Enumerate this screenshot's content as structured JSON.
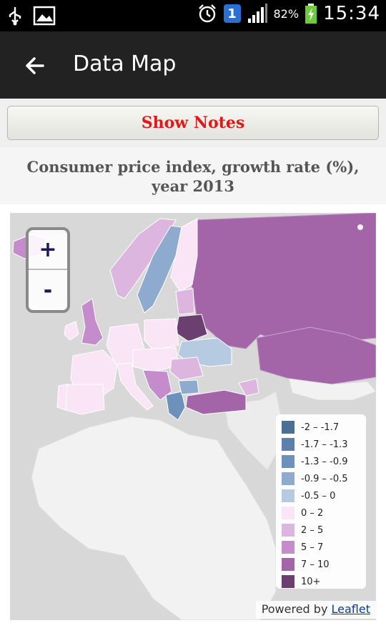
{
  "status_bar": {
    "battery_percent": "82%",
    "time": "15:34",
    "notification_badge": "1",
    "icons": [
      "usb-icon",
      "image-icon",
      "alarm-icon",
      "signal-icon",
      "battery-charging-icon"
    ]
  },
  "app_bar": {
    "title": "Data Map",
    "back_icon": "arrow-left-icon"
  },
  "notes_button": {
    "label": "Show Notes",
    "color": "#e01a1a"
  },
  "map": {
    "title_line1": "Consumer price index, growth rate (%),",
    "title_line2": "year 2013",
    "zoom_in_label": "+",
    "zoom_out_label": "-",
    "legend": [
      {
        "label": "-2 – -1.7",
        "color": "#4a6f96"
      },
      {
        "label": "-1.7 – -1.3",
        "color": "#5b81aa"
      },
      {
        "label": "-1.3 – -0.9",
        "color": "#6e91bb"
      },
      {
        "label": "-0.9 – -0.5",
        "color": "#8eabcf"
      },
      {
        "label": "-0.5 – 0",
        "color": "#b6cbe2"
      },
      {
        "label": "0 – 2",
        "color": "#f9e5f5"
      },
      {
        "label": "2 – 5",
        "color": "#dcb6df"
      },
      {
        "label": "5 – 7",
        "color": "#c48ccb"
      },
      {
        "label": "7 – 10",
        "color": "#a465a8"
      },
      {
        "label": "10+",
        "color": "#6b3f6f"
      }
    ],
    "attribution_prefix": "Powered by ",
    "attribution_link": "Leaflet"
  }
}
